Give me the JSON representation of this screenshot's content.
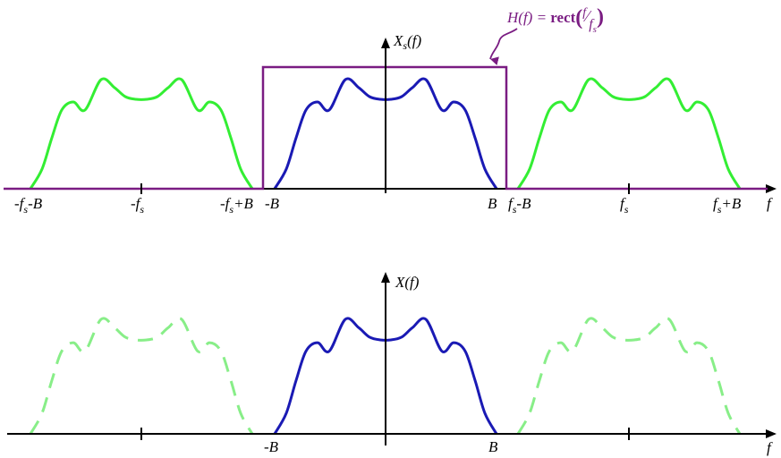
{
  "top": {
    "ylabel": {
      "base": "X",
      "sub": "s",
      "rest": "(f)"
    },
    "xlabel": "f",
    "ticks": [
      {
        "parts": [
          [
            "-f",
            ""
          ],
          [
            "s",
            "s"
          ],
          [
            "-B",
            ""
          ]
        ]
      },
      {
        "parts": [
          [
            "-f",
            ""
          ],
          [
            "s",
            "s"
          ]
        ]
      },
      {
        "parts": [
          [
            "-f",
            ""
          ],
          [
            "s",
            "s"
          ],
          [
            "+B",
            ""
          ]
        ]
      },
      {
        "parts": [
          [
            "-B",
            ""
          ]
        ]
      },
      {
        "parts": [
          [
            "B",
            ""
          ]
        ]
      },
      {
        "parts": [
          [
            "f",
            ""
          ],
          [
            "s",
            "s"
          ],
          [
            "-B",
            ""
          ]
        ]
      },
      {
        "parts": [
          [
            "f",
            ""
          ],
          [
            "s",
            "s"
          ]
        ]
      },
      {
        "parts": [
          [
            "f",
            ""
          ],
          [
            "s",
            "s"
          ],
          [
            "+B",
            ""
          ]
        ]
      }
    ],
    "filter_label": {
      "lhs": "H(f) = ",
      "fn": "rect",
      "num": "f",
      "den": "f",
      "den_sub": "s"
    }
  },
  "bottom": {
    "ylabel": "X(f)",
    "xlabel": "f",
    "ticks": [
      "-B",
      "B"
    ]
  },
  "colors": {
    "baseband": "#1a1ab4",
    "replica": "#33ee33",
    "replica_faded": "#88ee88",
    "filter": "#7a1c82",
    "axis": "#000000"
  }
}
